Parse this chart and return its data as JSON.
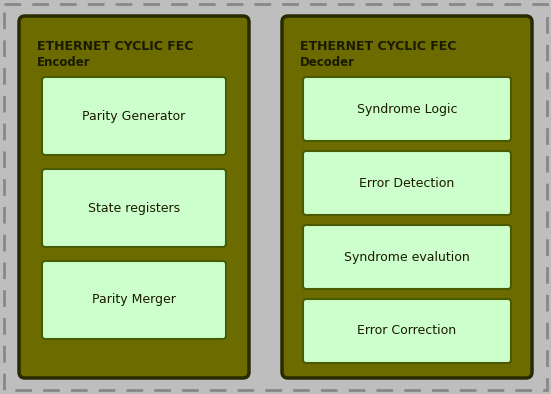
{
  "background_color": "#bebebe",
  "outer_box_color": "#6b6b00",
  "outer_box_edge": "#2a2a00",
  "inner_box_color": "#ccffcc",
  "inner_box_edge": "#4a5a00",
  "text_color_dark": "#1a1a00",
  "encoder_title": "ETHERNET CYCLIC FEC",
  "encoder_subtitle": "Encoder",
  "decoder_title": "ETHERNET CYCLIC FEC",
  "decoder_subtitle": "Decoder",
  "encoder_blocks": [
    "Parity Generator",
    "State registers",
    "Parity Merger"
  ],
  "decoder_blocks": [
    "Syndrome Logic",
    "Error Detection",
    "Syndrome evalution",
    "Error Correction"
  ],
  "fig_width": 5.51,
  "fig_height": 3.94,
  "dpi": 100
}
